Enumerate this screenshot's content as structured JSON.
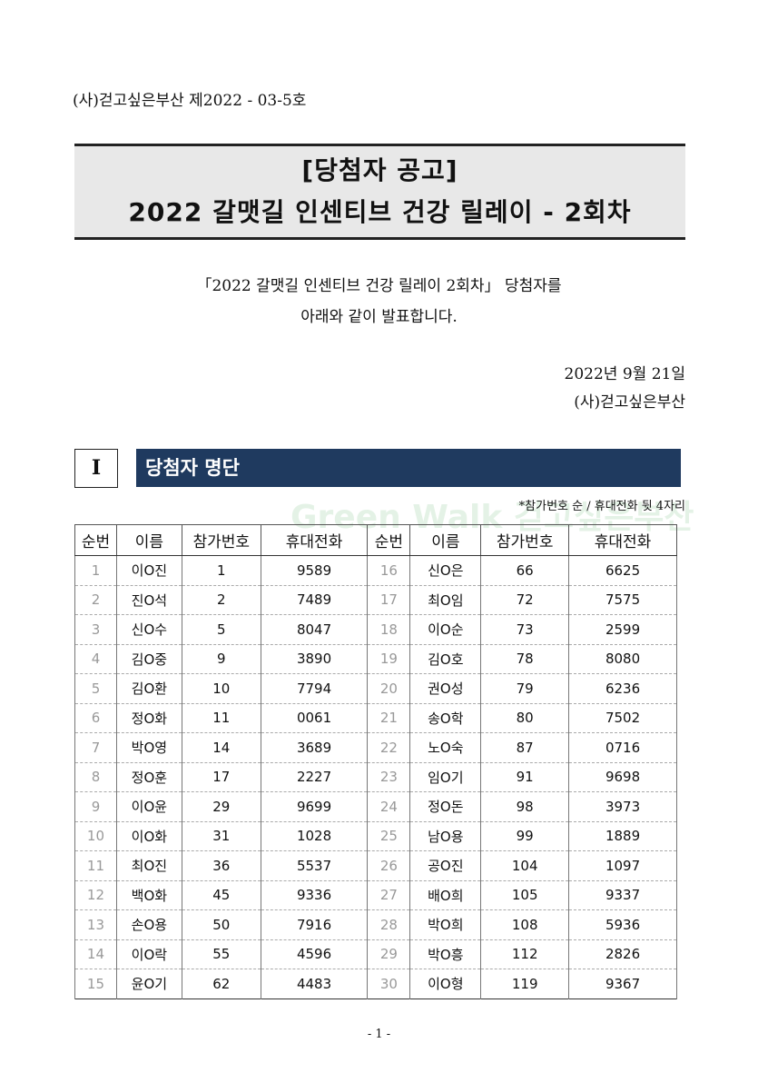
{
  "doc_number": "(사)걷고싶은부산 제2022 - 03-5호",
  "title": {
    "line1": "[당첨자 공고]",
    "line2": "2022 갈맷길 인센티브 건강 릴레이 - 2회차"
  },
  "intro": {
    "line1": "「2022 갈맷길 인센티브 건강 릴레이 2회차」 당첨자를",
    "line2": "아래와 같이 발표합니다."
  },
  "date": "2022년 9월 21일",
  "organization": "(사)걷고싶은부산",
  "section": {
    "number": "I",
    "title": "당첨자 명단",
    "note": "*참가번호 순 / 휴대전화 뒷 4자리"
  },
  "watermark": "Green Walk 걷고싶은부산",
  "table": {
    "headers": [
      "순번",
      "이름",
      "참가번호",
      "휴대전화",
      "순번",
      "이름",
      "참가번호",
      "휴대전화"
    ],
    "rows": [
      [
        "1",
        "이O진",
        "1",
        "9589",
        "16",
        "신O은",
        "66",
        "6625"
      ],
      [
        "2",
        "진O석",
        "2",
        "7489",
        "17",
        "최O임",
        "72",
        "7575"
      ],
      [
        "3",
        "신O수",
        "5",
        "8047",
        "18",
        "이O순",
        "73",
        "2599"
      ],
      [
        "4",
        "김O중",
        "9",
        "3890",
        "19",
        "김O호",
        "78",
        "8080"
      ],
      [
        "5",
        "김O환",
        "10",
        "7794",
        "20",
        "권O성",
        "79",
        "6236"
      ],
      [
        "6",
        "정O화",
        "11",
        "0061",
        "21",
        "송O학",
        "80",
        "7502"
      ],
      [
        "7",
        "박O영",
        "14",
        "3689",
        "22",
        "노O숙",
        "87",
        "0716"
      ],
      [
        "8",
        "정O훈",
        "17",
        "2227",
        "23",
        "임O기",
        "91",
        "9698"
      ],
      [
        "9",
        "이O윤",
        "29",
        "9699",
        "24",
        "정O돈",
        "98",
        "3973"
      ],
      [
        "10",
        "이O화",
        "31",
        "1028",
        "25",
        "남O용",
        "99",
        "1889"
      ],
      [
        "11",
        "최O진",
        "36",
        "5537",
        "26",
        "공O진",
        "104",
        "1097"
      ],
      [
        "12",
        "백O화",
        "45",
        "9336",
        "27",
        "배O희",
        "105",
        "9337"
      ],
      [
        "13",
        "손O용",
        "50",
        "7916",
        "28",
        "박O희",
        "108",
        "5936"
      ],
      [
        "14",
        "이O락",
        "55",
        "4596",
        "29",
        "박O흥",
        "112",
        "2826"
      ],
      [
        "15",
        "윤O기",
        "62",
        "4483",
        "30",
        "이O형",
        "119",
        "9367"
      ]
    ]
  },
  "page_number": "- 1 -"
}
